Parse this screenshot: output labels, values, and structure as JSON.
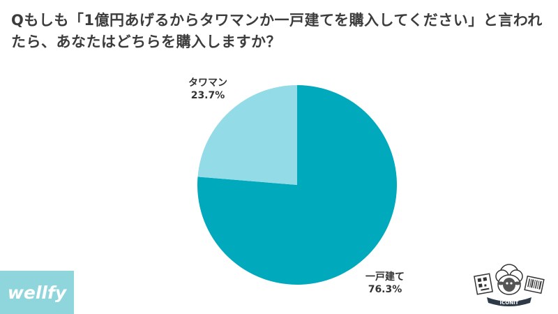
{
  "title": "Qもしも「1億円あげるからタワマンか一戸建てを購入してください」と言われたら、あなたはどちらを購入しますか？",
  "colors": {
    "tower": "#93dbe6",
    "house": "#00a9bc",
    "title": "#3c3c3c"
  },
  "chart_data": {
    "type": "pie",
    "start": "12 o'clock, clockwise",
    "slices": [
      {
        "label": "一戸建て",
        "value": 76.3,
        "value_text": "76.3%",
        "color": "#00a9bc"
      },
      {
        "label": "タワマン",
        "value": 23.7,
        "value_text": "23.7%",
        "color": "#93dbe6"
      }
    ]
  },
  "brand": {
    "wellfy": "wellfy",
    "iconit": "ICONIT"
  }
}
